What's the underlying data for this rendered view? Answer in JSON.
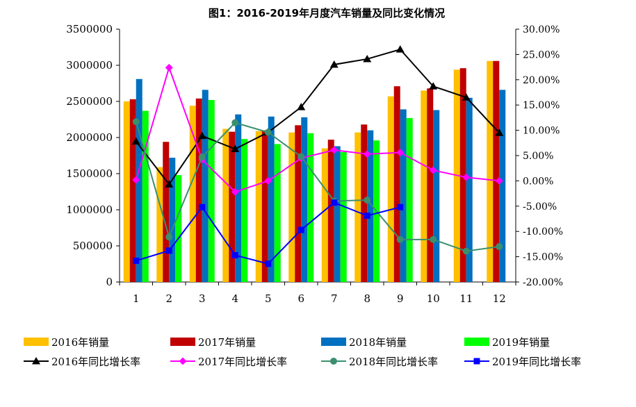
{
  "chart_data": {
    "type": "bar",
    "title": "图1：2016-2019年月度汽车销量及同比变化情况",
    "categories": [
      "1",
      "2",
      "3",
      "4",
      "5",
      "6",
      "7",
      "8",
      "9",
      "10",
      "11",
      "12"
    ],
    "ylim": [
      0,
      3500000
    ],
    "yticks": [
      "0",
      "500000",
      "1000000",
      "1500000",
      "2000000",
      "2500000",
      "3000000",
      "3500000"
    ],
    "y2lim": [
      -20,
      30
    ],
    "y2ticks": [
      "30.00%",
      "25.00%",
      "20.00%",
      "15.00%",
      "10.00%",
      "5.00%",
      "0.00%",
      "-5.00%",
      "-10.00%",
      "-15.00%",
      "-20.00%"
    ],
    "grid": false,
    "legend_position": "bottom",
    "bar_series": [
      {
        "name": "2016年销量",
        "color": "#FFC000",
        "values": [
          2500000,
          1590000,
          2440000,
          2120000,
          2090000,
          2070000,
          1850000,
          2070000,
          2570000,
          2650000,
          2940000,
          3060000
        ]
      },
      {
        "name": "2017年销量",
        "color": "#C00000",
        "values": [
          2530000,
          1940000,
          2540000,
          2080000,
          2100000,
          2170000,
          1970000,
          2180000,
          2710000,
          2680000,
          2960000,
          3060000
        ]
      },
      {
        "name": "2018年销量",
        "color": "#0070C0",
        "values": [
          2810000,
          1720000,
          2660000,
          2320000,
          2290000,
          2280000,
          1880000,
          2100000,
          2390000,
          2380000,
          2550000,
          2660000
        ]
      },
      {
        "name": "2019年销量",
        "color": "#00FF00",
        "values": [
          2370000,
          1480000,
          2520000,
          1980000,
          1910000,
          2060000,
          1800000,
          1960000,
          2270000,
          null,
          null,
          null
        ]
      }
    ],
    "line_series": [
      {
        "name": "2016年同比增长率",
        "color": "#000000",
        "marker": "triangle",
        "values": [
          7.8,
          -0.7,
          8.9,
          6.3,
          9.6,
          14.6,
          23.0,
          24.1,
          26.0,
          18.7,
          16.5,
          9.5
        ]
      },
      {
        "name": "2017年同比增长率",
        "color": "#FF00FF",
        "marker": "diamond",
        "values": [
          0.2,
          22.4,
          4.2,
          -2.2,
          0.0,
          4.5,
          6.1,
          5.3,
          5.6,
          2.1,
          0.7,
          0.0
        ]
      },
      {
        "name": "2018年同比增长率",
        "color": "#3A8F6F",
        "marker": "circle",
        "values": [
          11.7,
          -11.1,
          4.7,
          11.5,
          9.6,
          4.8,
          -4.0,
          -3.8,
          -11.6,
          -11.6,
          -13.9,
          -13.0
        ]
      },
      {
        "name": "2019年同比增长率",
        "color": "#0000FF",
        "marker": "square",
        "values": [
          -15.8,
          -13.8,
          -5.2,
          -14.7,
          -16.4,
          -9.7,
          -4.3,
          -6.9,
          -5.2,
          null,
          null,
          null
        ]
      }
    ]
  }
}
